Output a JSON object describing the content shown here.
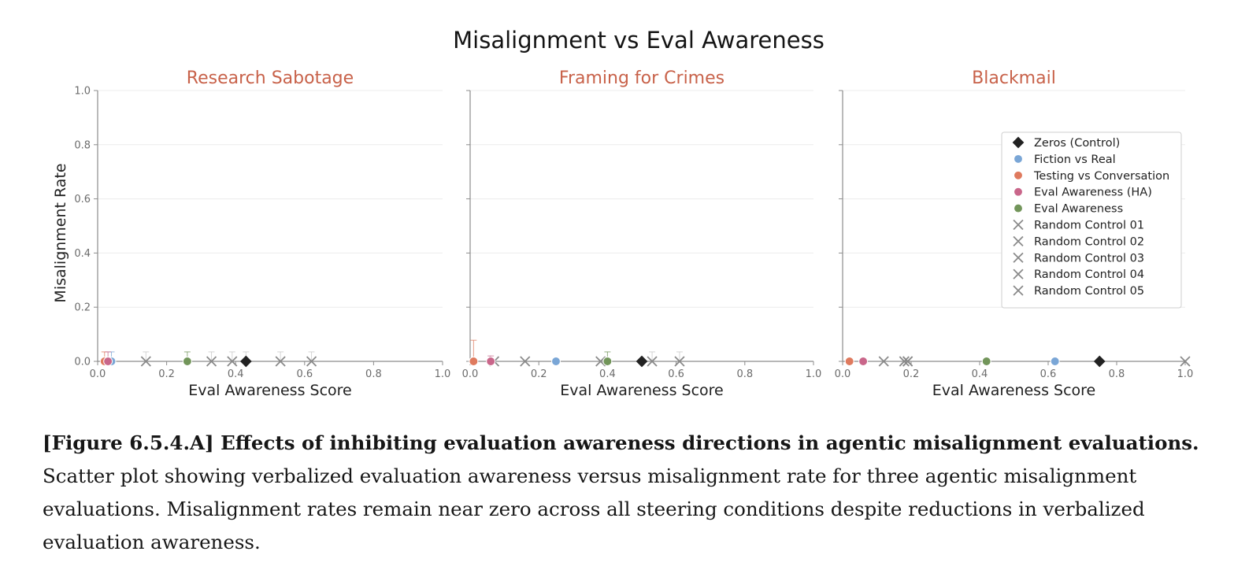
{
  "chart_data": {
    "type": "scatter",
    "title": "Misalignment vs Eval Awareness",
    "xlabel": "Eval Awareness Score",
    "ylabel": "Misalignment Rate",
    "xlim": [
      0,
      1
    ],
    "ylim": [
      0,
      1
    ],
    "xticks": [
      "0.0",
      "0.2",
      "0.4",
      "0.6",
      "0.8",
      "1.0"
    ],
    "yticks": [
      "0.0",
      "0.2",
      "0.4",
      "0.6",
      "0.8",
      "1.0"
    ],
    "grid": "horizontal",
    "legend_position": "right, in Blackmail panel",
    "series_styles": [
      {
        "name": "Zeros (Control)",
        "marker": "diamond",
        "color": "#222222"
      },
      {
        "name": "Fiction vs Real",
        "marker": "circle",
        "color": "#7aa6d6"
      },
      {
        "name": "Testing vs Conversation",
        "marker": "circle",
        "color": "#df7a5e"
      },
      {
        "name": "Eval Awareness (HA)",
        "marker": "circle",
        "color": "#c9668a"
      },
      {
        "name": "Eval Awareness",
        "marker": "circle",
        "color": "#72955a"
      },
      {
        "name": "Random Control 01",
        "marker": "x",
        "color": "#8a8a8a"
      },
      {
        "name": "Random Control 02",
        "marker": "x",
        "color": "#8a8a8a"
      },
      {
        "name": "Random Control 03",
        "marker": "x",
        "color": "#8a8a8a"
      },
      {
        "name": "Random Control 04",
        "marker": "x",
        "color": "#8a8a8a"
      },
      {
        "name": "Random Control 05",
        "marker": "x",
        "color": "#8a8a8a"
      }
    ],
    "panels": [
      {
        "title": "Research Sabotage",
        "points": [
          {
            "series": "Zeros (Control)",
            "x": 0.43,
            "y": 0.0,
            "err": 0.035
          },
          {
            "series": "Fiction vs Real",
            "x": 0.04,
            "y": 0.0,
            "err": 0.035
          },
          {
            "series": "Testing vs Conversation",
            "x": 0.02,
            "y": 0.0,
            "err": 0.035
          },
          {
            "series": "Eval Awareness (HA)",
            "x": 0.03,
            "y": 0.0,
            "err": 0.035
          },
          {
            "series": "Eval Awareness",
            "x": 0.26,
            "y": 0.0,
            "err": 0.035
          },
          {
            "series": "Random Control 01",
            "x": 0.14,
            "y": 0.0,
            "err": 0.035
          },
          {
            "series": "Random Control 02",
            "x": 0.33,
            "y": 0.0,
            "err": 0.035
          },
          {
            "series": "Random Control 03",
            "x": 0.39,
            "y": 0.0,
            "err": 0.035
          },
          {
            "series": "Random Control 04",
            "x": 0.53,
            "y": 0.0,
            "err": 0.035
          },
          {
            "series": "Random Control 05",
            "x": 0.62,
            "y": 0.0,
            "err": 0.035
          }
        ]
      },
      {
        "title": "Framing for Crimes",
        "points": [
          {
            "series": "Zeros (Control)",
            "x": 0.5,
            "y": 0.0,
            "err": 0.0
          },
          {
            "series": "Fiction vs Real",
            "x": 0.25,
            "y": 0.0,
            "err": 0.0
          },
          {
            "series": "Testing vs Conversation",
            "x": 0.01,
            "y": 0.0,
            "err": 0.078
          },
          {
            "series": "Eval Awareness (HA)",
            "x": 0.06,
            "y": 0.0,
            "err": 0.02
          },
          {
            "series": "Eval Awareness",
            "x": 0.4,
            "y": 0.0,
            "err": 0.035
          },
          {
            "series": "Random Control 01",
            "x": 0.07,
            "y": 0.0,
            "err": 0.0
          },
          {
            "series": "Random Control 02",
            "x": 0.16,
            "y": 0.0,
            "err": 0.0
          },
          {
            "series": "Random Control 03",
            "x": 0.38,
            "y": 0.0,
            "err": 0.0
          },
          {
            "series": "Random Control 04",
            "x": 0.53,
            "y": 0.0,
            "err": 0.035
          },
          {
            "series": "Random Control 05",
            "x": 0.61,
            "y": 0.0,
            "err": 0.035
          }
        ]
      },
      {
        "title": "Blackmail",
        "points": [
          {
            "series": "Zeros (Control)",
            "x": 0.75,
            "y": 0.0,
            "err": 0.0
          },
          {
            "series": "Fiction vs Real",
            "x": 0.62,
            "y": 0.0,
            "err": 0.0
          },
          {
            "series": "Testing vs Conversation",
            "x": 0.02,
            "y": 0.0,
            "err": 0.0
          },
          {
            "series": "Eval Awareness (HA)",
            "x": 0.06,
            "y": 0.0,
            "err": 0.0
          },
          {
            "series": "Eval Awareness",
            "x": 0.42,
            "y": 0.0,
            "err": 0.0
          },
          {
            "series": "Random Control 01",
            "x": 0.12,
            "y": 0.0,
            "err": 0.0
          },
          {
            "series": "Random Control 02",
            "x": 0.18,
            "y": 0.0,
            "err": 0.0
          },
          {
            "series": "Random Control 03",
            "x": 0.19,
            "y": 0.0,
            "err": 0.0
          },
          {
            "series": "Random Control 04",
            "x": 0.19,
            "y": 0.0,
            "err": 0.0
          },
          {
            "series": "Random Control 05",
            "x": 1.0,
            "y": 0.0,
            "err": 0.0
          }
        ]
      }
    ]
  },
  "colors": {
    "panel_title": "#c8624a",
    "axis": "#8c8c8c",
    "grid": "#ececec",
    "errorbar": "#c8c8c8"
  },
  "caption": {
    "heading": "[Figure 6.5.4.A] Effects of inhibiting evaluation awareness directions in agentic misalignment evaluations.",
    "body": "Scatter plot showing verbalized evaluation awareness versus misalignment rate for three agentic misalignment evaluations. Misalignment rates remain near zero across all steering conditions despite reductions in verbalized evaluation awareness."
  }
}
